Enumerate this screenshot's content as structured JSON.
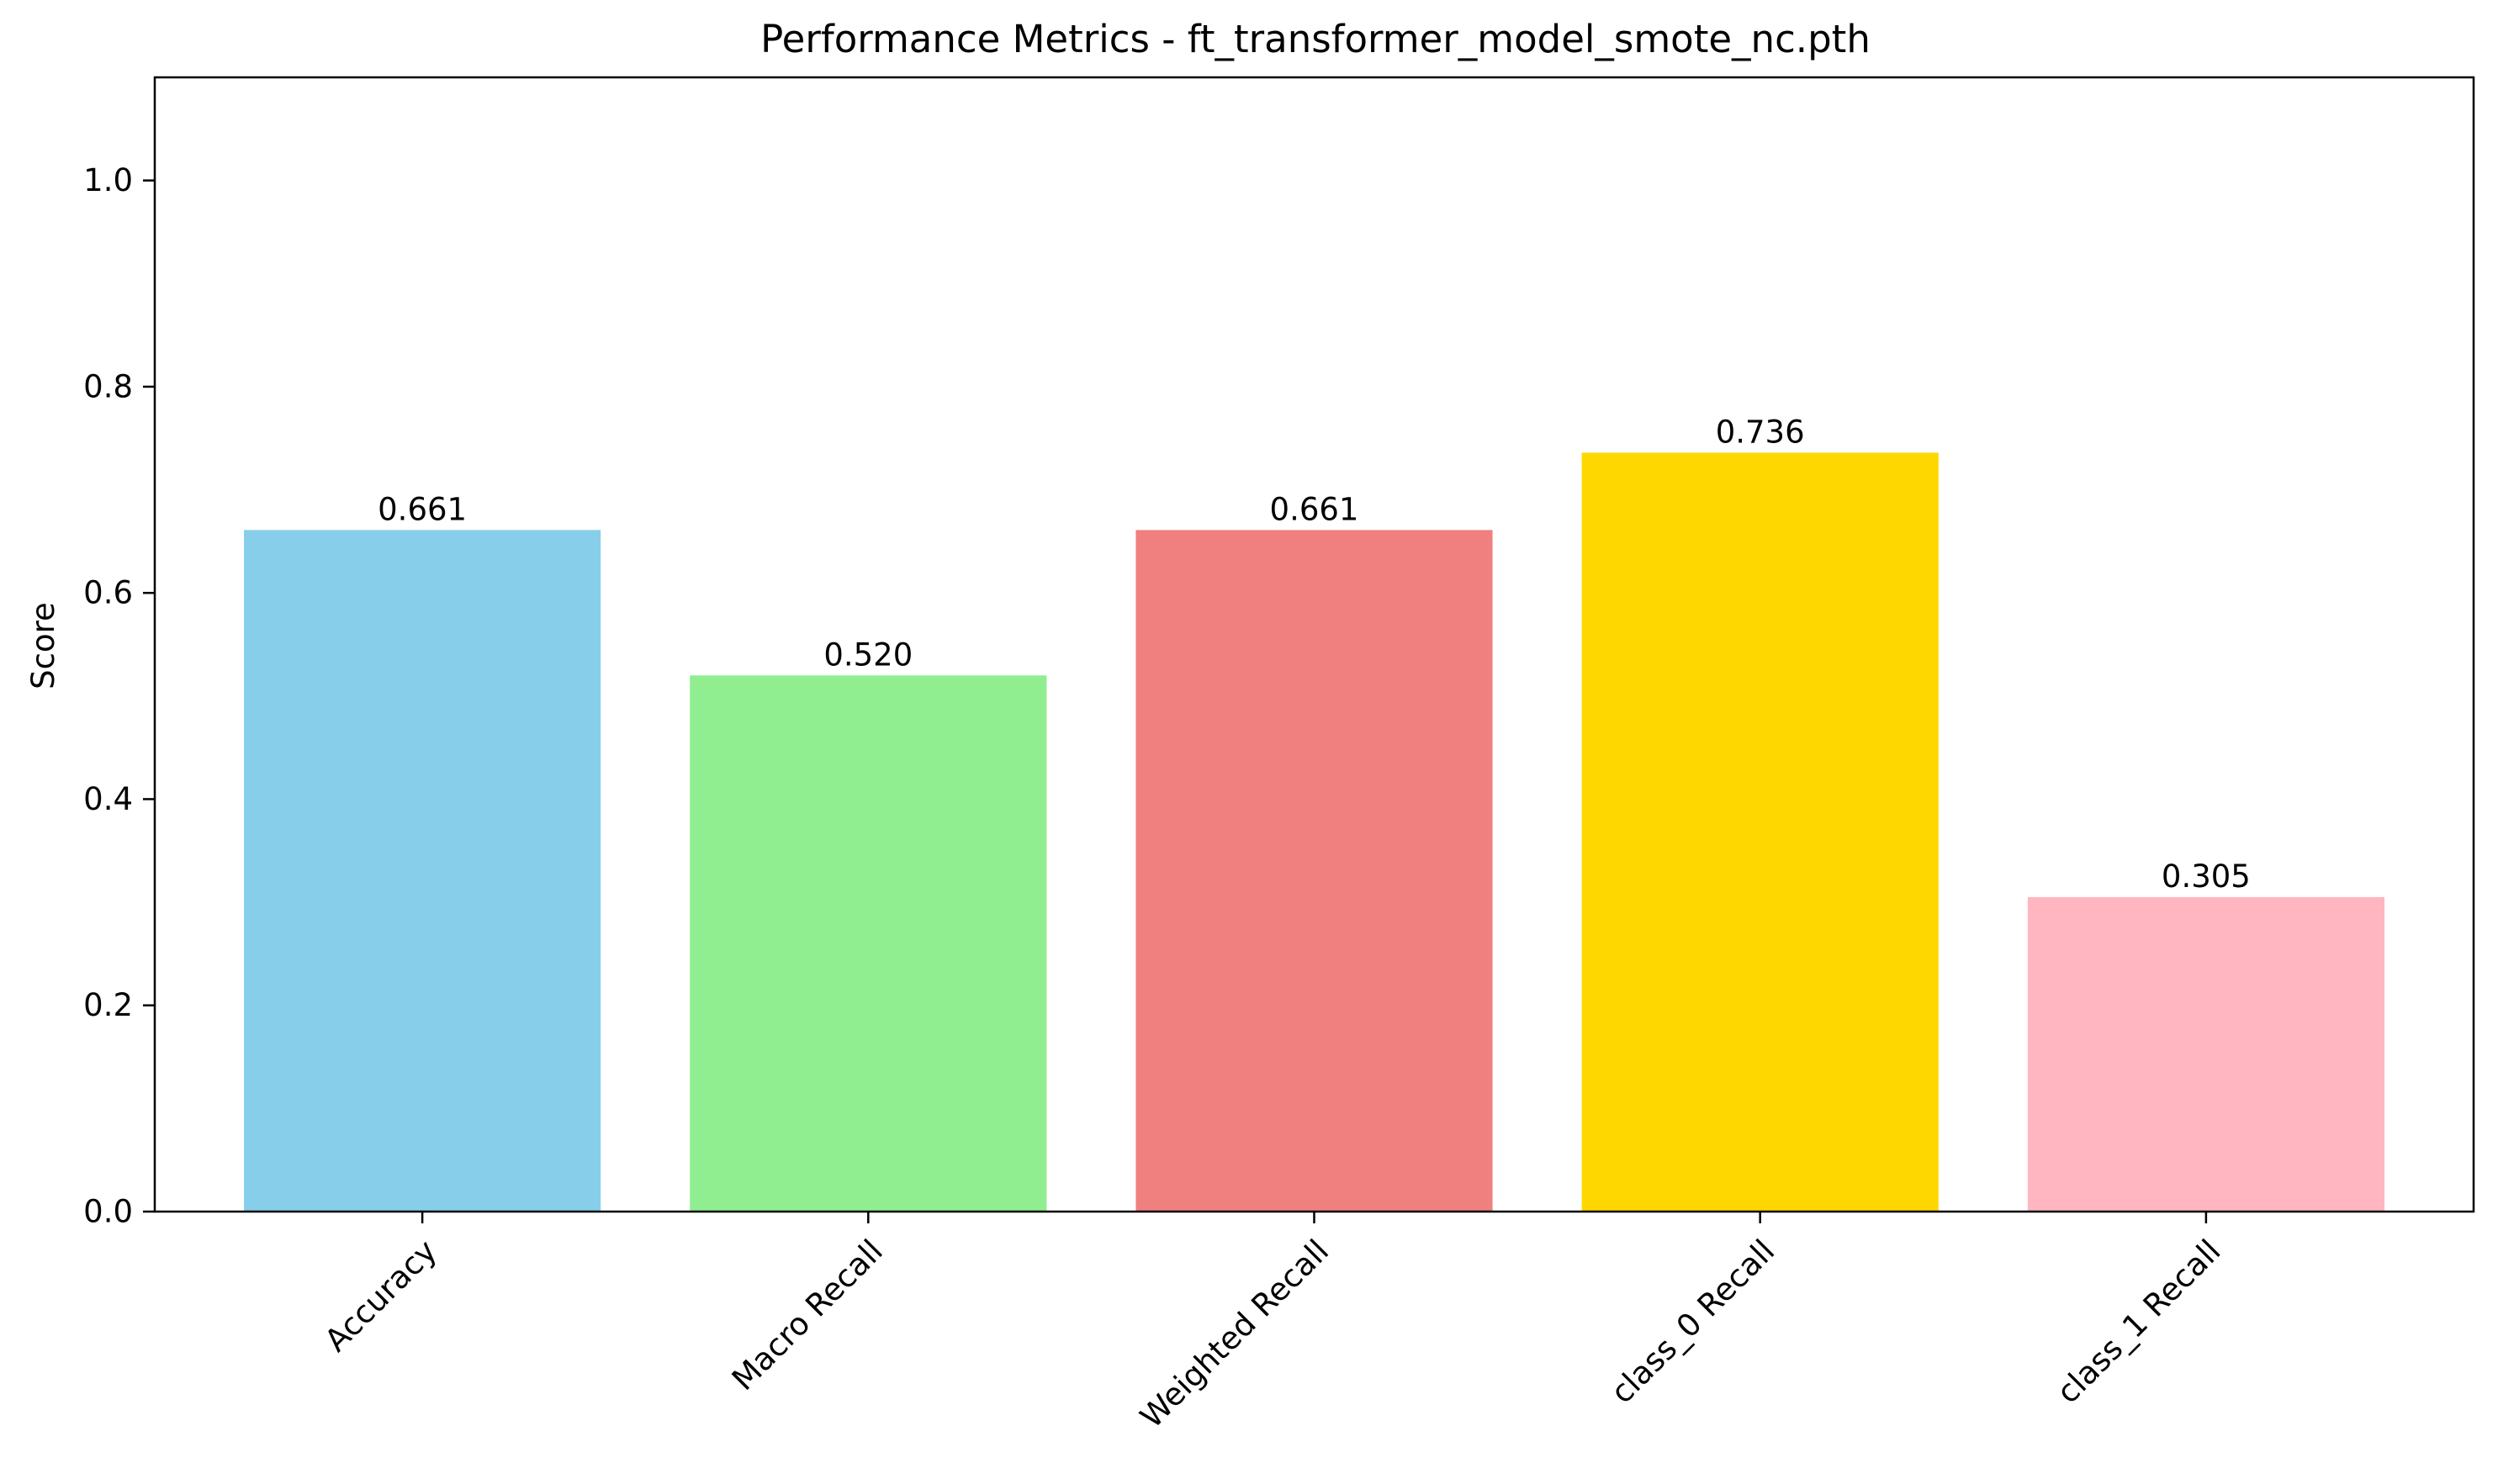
{
  "chart_data": {
    "type": "bar",
    "title": "Performance Metrics - ft_transformer_model_smote_nc.pth",
    "xlabel": "",
    "ylabel": "Score",
    "ylim": [
      0,
      1.1
    ],
    "yticks": [
      0.0,
      0.2,
      0.4,
      0.6,
      0.8,
      1.0
    ],
    "ytick_labels": [
      "0.0",
      "0.2",
      "0.4",
      "0.6",
      "0.8",
      "1.0"
    ],
    "categories": [
      "Accuracy",
      "Macro Recall",
      "Weighted Recall",
      "class_0 Recall",
      "class_1 Recall"
    ],
    "values": [
      0.661,
      0.52,
      0.661,
      0.736,
      0.305
    ],
    "value_labels": [
      "0.661",
      "0.520",
      "0.661",
      "0.736",
      "0.305"
    ],
    "colors": [
      "#87ceeb",
      "#90ee90",
      "#f08080",
      "#ffd700",
      "#ffb6c1"
    ],
    "grid": false,
    "legend": "none"
  }
}
